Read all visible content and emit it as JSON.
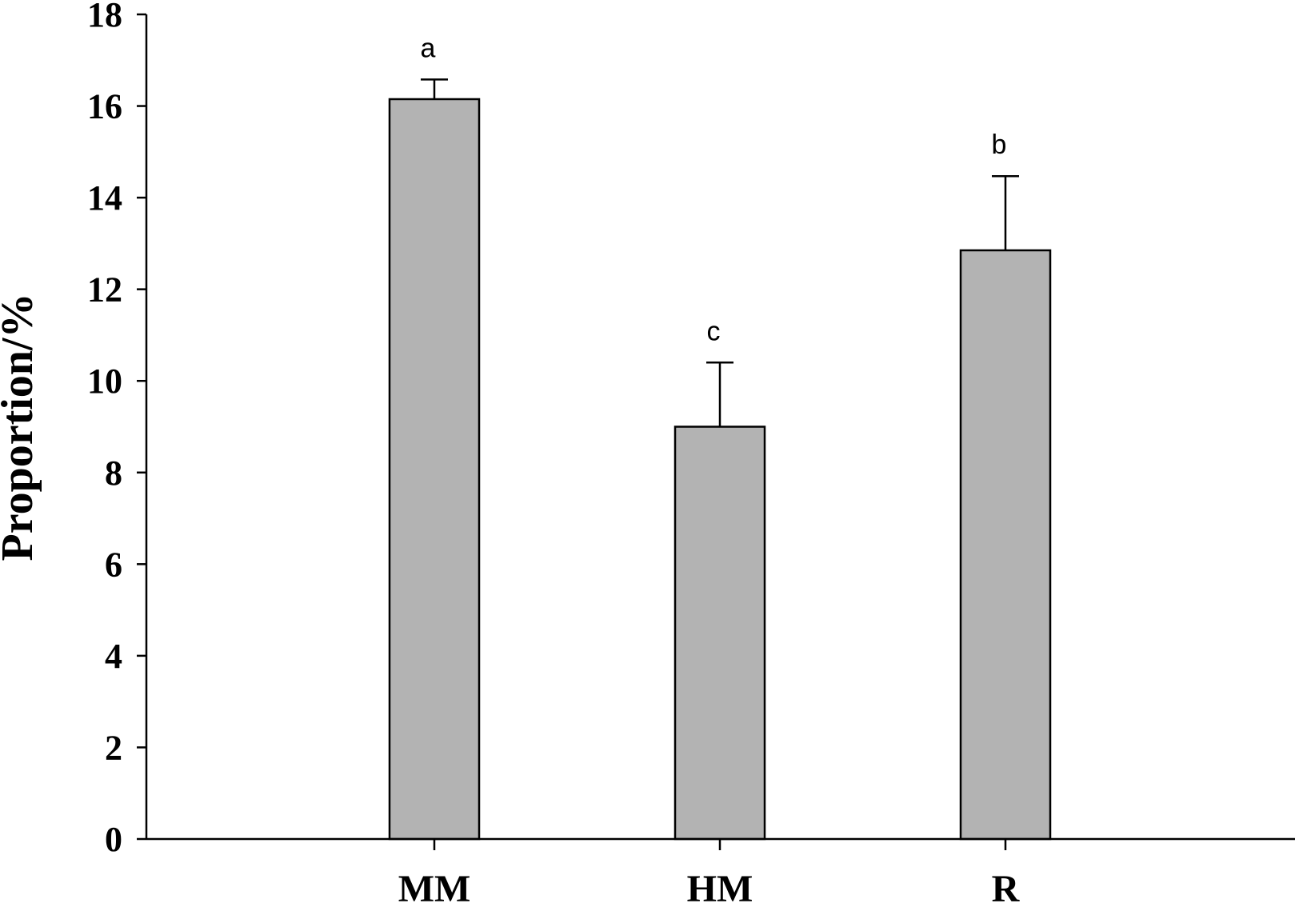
{
  "chart_data": {
    "type": "bar",
    "title": "",
    "xlabel": "",
    "ylabel": "Proportion/%",
    "ylim": [
      0,
      18
    ],
    "yticks": [
      0,
      2,
      4,
      6,
      8,
      10,
      12,
      14,
      16,
      18
    ],
    "categories": [
      "MM",
      "HM",
      "R"
    ],
    "values": [
      16.15,
      9.0,
      12.85
    ],
    "errors": [
      0.43,
      1.4,
      1.62
    ],
    "significance_labels": [
      "a",
      "c",
      "b"
    ],
    "grid": false,
    "legend": "none",
    "bar_color": "#b3b3b3",
    "edge_color": "#000000"
  }
}
